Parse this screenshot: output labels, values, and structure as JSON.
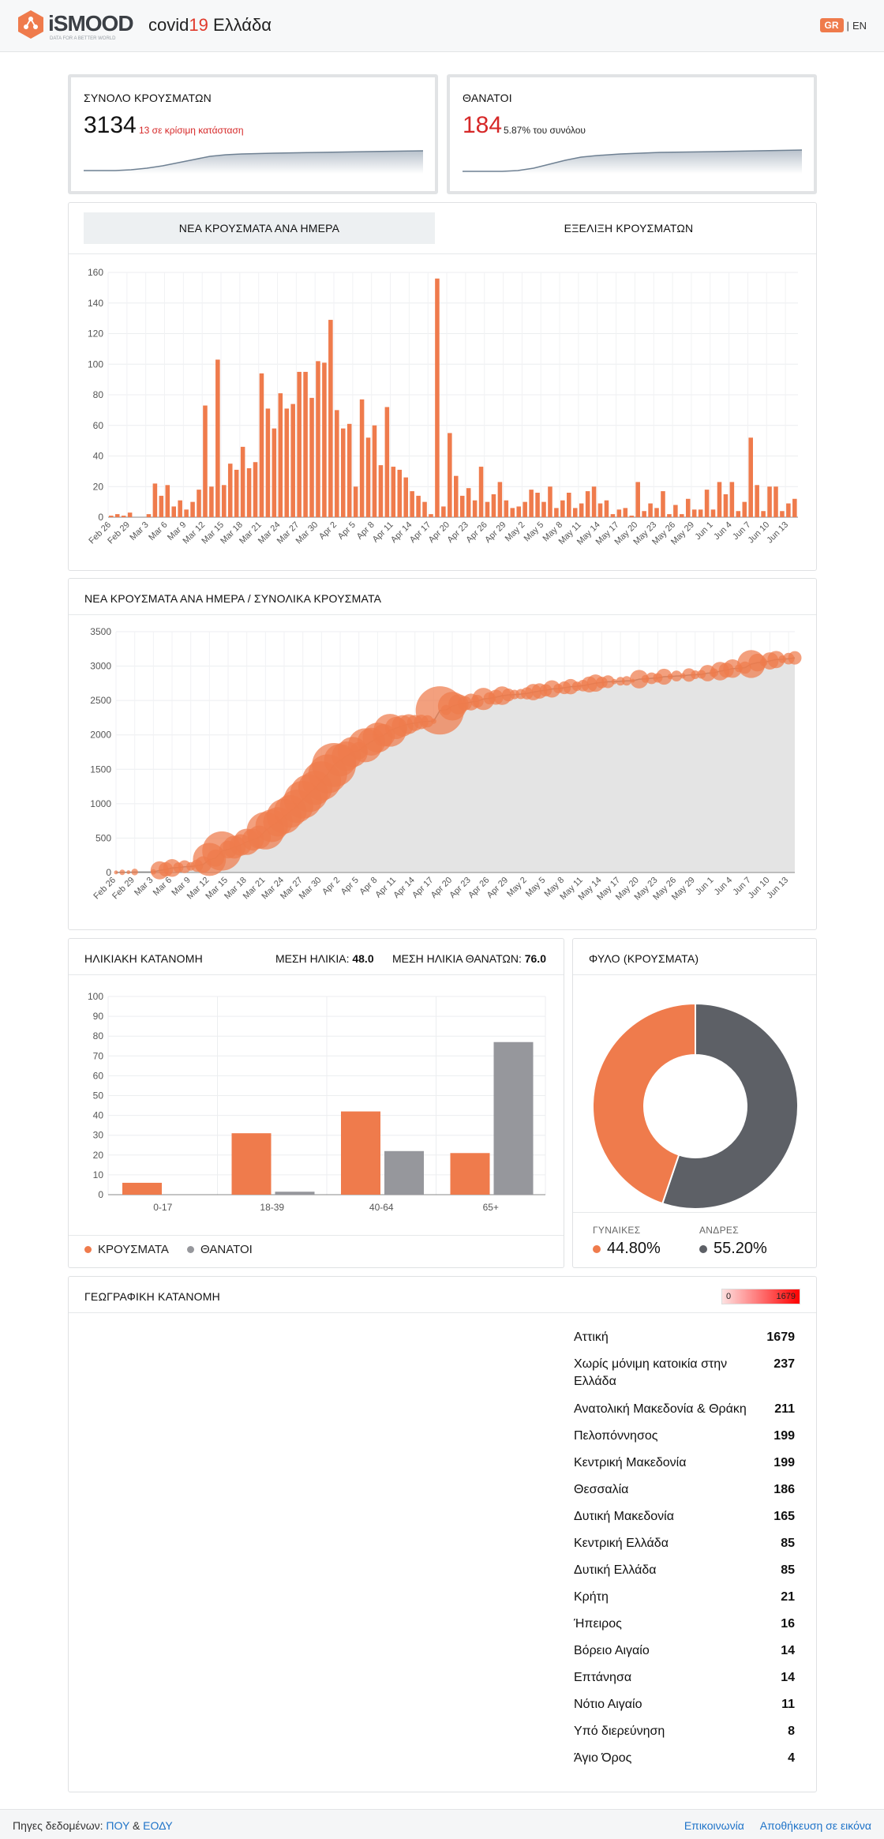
{
  "header": {
    "logo_text": "iSMOOD",
    "logo_tagline": "DATA FOR A BETTER WORLD",
    "title_prefix": "covid",
    "title_number": "19",
    "title_suffix": " Ελλάδα",
    "lang_active": "GR",
    "lang_separator": "|",
    "lang_other": "EN"
  },
  "total_cases": {
    "title": "ΣΥΝΟΛΟ ΚΡΟΥΣΜΑΤΩΝ",
    "value": "3134",
    "sub": "13 σε κρίσιμη κατάσταση"
  },
  "deaths": {
    "title": "ΘΑΝΑΤΟΙ",
    "value": "184",
    "sub": "5.87% του συνόλου"
  },
  "tabs": {
    "daily": "ΝΕΑ ΚΡΟΥΣΜΑΤΑ ΑΝΑ ΗΜΕΡΑ",
    "evolution": "ΕΞΕΛΙΞΗ ΚΡΟΥΣΜΑΤΩΝ"
  },
  "cumulative_card": {
    "title": "ΝΕΑ ΚΡΟΥΣΜΑΤΑ ΑΝΑ ΗΜΕΡΑ / ΣΥΝΟΛΙΚΑ ΚΡΟΥΣΜΑΤΑ"
  },
  "age_card": {
    "title": "ΗΛΙΚΙΑΚΗ ΚΑΤΑΝΟΜΗ",
    "mean_age_label": "ΜΕΣΗ ΗΛΙΚΙΑ:",
    "mean_age_value": "48.0",
    "mean_death_age_label": "ΜΕΣΗ ΗΛΙΚΙΑ ΘΑΝΑΤΩΝ:",
    "mean_death_age_value": "76.0",
    "legend_cases": "ΚΡΟΥΣΜΑΤΑ",
    "legend_deaths": "ΘΑΝΑΤΟΙ"
  },
  "gender_card": {
    "title": "ΦΥΛΟ (ΚΡΟΥΣΜΑΤΑ)",
    "women_label": "ΓΥΝΑΙΚΕΣ",
    "women_value": "44.80%",
    "men_label": "ΑΝΔΡΕΣ",
    "men_value": "55.20%"
  },
  "geo_card": {
    "title": "ΓΕΩΓΡΑΦΙΚΗ ΚΑΤΑΝΟΜΗ",
    "scale_min": "0",
    "scale_max": "1679",
    "regions": [
      {
        "name": "Αττική",
        "value": "1679"
      },
      {
        "name": "Χωρίς μόνιμη κατοικία στην Ελλάδα",
        "value": "237"
      },
      {
        "name": "Ανατολική Μακεδονία & Θράκη",
        "value": "211"
      },
      {
        "name": "Πελοπόννησος",
        "value": "199"
      },
      {
        "name": "Κεντρική Μακεδονία",
        "value": "199"
      },
      {
        "name": "Θεσσαλία",
        "value": "186"
      },
      {
        "name": "Δυτική Μακεδονία",
        "value": "165"
      },
      {
        "name": "Κεντρική Ελλάδα",
        "value": "85"
      },
      {
        "name": "Δυτική Ελλάδα",
        "value": "85"
      },
      {
        "name": "Κρήτη",
        "value": "21"
      },
      {
        "name": "Ήπειρος",
        "value": "16"
      },
      {
        "name": "Βόρειο Αιγαίο",
        "value": "14"
      },
      {
        "name": "Επτάνησα",
        "value": "14"
      },
      {
        "name": "Νότιο Αιγαίο",
        "value": "11"
      },
      {
        "name": "Υπό διερεύνηση",
        "value": "8"
      },
      {
        "name": "Άγιο Όρος",
        "value": "4"
      }
    ]
  },
  "footer": {
    "sources_label": "Πηγες δεδομένων:",
    "source_who": "ΠΟΥ",
    "amp": "&",
    "source_eody": "ΕΟΔΥ",
    "contact": "Επικοινωνία",
    "save_image": "Αποθήκευση σε εικόνα"
  },
  "colors": {
    "orange": "#ef7b4c",
    "gray_dark": "#5d6066",
    "gray_bar": "#96979c",
    "red": "#d62828"
  },
  "chart_data": [
    {
      "type": "bar",
      "id": "daily",
      "tick_labels": [
        "Feb 26",
        "Feb 29",
        "Mar 3",
        "Mar 6",
        "Mar 9",
        "Mar 12",
        "Mar 15",
        "Mar 18",
        "Mar 21",
        "Mar 24",
        "Mar 27",
        "Mar 30",
        "Apr 2",
        "Apr 5",
        "Apr 8",
        "Apr 11",
        "Apr 14",
        "Apr 17",
        "Apr 20",
        "Apr 23",
        "Apr 26",
        "Apr 29",
        "May 2",
        "May 5",
        "May 8",
        "May 11",
        "May 14",
        "May 17",
        "May 20",
        "May 23",
        "May 26",
        "May 29",
        "Jun 1",
        "Jun 4",
        "Jun 7",
        "Jun 10",
        "Jun 13"
      ],
      "values": [
        1,
        2,
        1,
        3,
        0,
        0,
        2,
        22,
        14,
        21,
        7,
        11,
        5,
        10,
        18,
        73,
        20,
        103,
        21,
        35,
        31,
        46,
        32,
        36,
        94,
        71,
        58,
        81,
        71,
        74,
        95,
        95,
        78,
        102,
        101,
        129,
        70,
        58,
        61,
        20,
        77,
        52,
        60,
        34,
        72,
        33,
        31,
        26,
        17,
        14,
        10,
        2,
        156,
        7,
        55,
        27,
        14,
        19,
        11,
        33,
        10,
        15,
        23,
        11,
        6,
        7,
        10,
        18,
        16,
        10,
        20,
        6,
        11,
        16,
        6,
        9,
        17,
        20,
        9,
        11,
        2,
        5,
        6,
        1,
        23,
        4,
        9,
        6,
        17,
        2,
        8,
        2,
        12,
        5,
        5,
        18,
        5,
        23,
        15,
        23,
        4,
        10,
        52,
        21,
        4,
        20,
        20,
        4,
        9,
        12
      ],
      "ylim": [
        0,
        160
      ],
      "yticks": [
        0,
        20,
        40,
        60,
        80,
        100,
        120,
        140,
        160
      ],
      "grid": true
    },
    {
      "type": "area",
      "id": "cumulative",
      "tick_labels": [
        "Feb 26",
        "Feb 29",
        "Mar 3",
        "Mar 6",
        "Mar 9",
        "Mar 12",
        "Mar 15",
        "Mar 18",
        "Mar 21",
        "Mar 24",
        "Mar 27",
        "Mar 30",
        "Apr 2",
        "Apr 5",
        "Apr 8",
        "Apr 11",
        "Apr 14",
        "Apr 17",
        "Apr 20",
        "Apr 23",
        "Apr 26",
        "Apr 29",
        "May 2",
        "May 5",
        "May 8",
        "May 11",
        "May 14",
        "May 17",
        "May 20",
        "May 23",
        "May 26",
        "May 29",
        "Jun 1",
        "Jun 4",
        "Jun 7",
        "Jun 10",
        "Jun 13"
      ],
      "ylim": [
        0,
        3500
      ],
      "yticks": [
        0,
        500,
        1000,
        1500,
        2000,
        2500,
        3000,
        3500
      ],
      "grid": true,
      "bubble_note": "bubble size = new cases that day"
    },
    {
      "type": "bar",
      "id": "age",
      "categories": [
        "0-17",
        "18-39",
        "40-64",
        "65+"
      ],
      "series": [
        {
          "name": "ΚΡΟΥΣΜΑΤΑ",
          "values": [
            6,
            31,
            42,
            21
          ]
        },
        {
          "name": "ΘΑΝΑΤΟΙ",
          "values": [
            0,
            1.5,
            22,
            77
          ]
        }
      ],
      "ylim": [
        0,
        100
      ],
      "yticks": [
        0,
        10,
        20,
        30,
        40,
        50,
        60,
        70,
        80,
        90,
        100
      ],
      "grid": true
    },
    {
      "type": "pie",
      "id": "gender",
      "donut": true,
      "categories": [
        "ΓΥΝΑΙΚΕΣ",
        "ΑΝΔΡΕΣ"
      ],
      "values": [
        44.8,
        55.2
      ]
    }
  ]
}
